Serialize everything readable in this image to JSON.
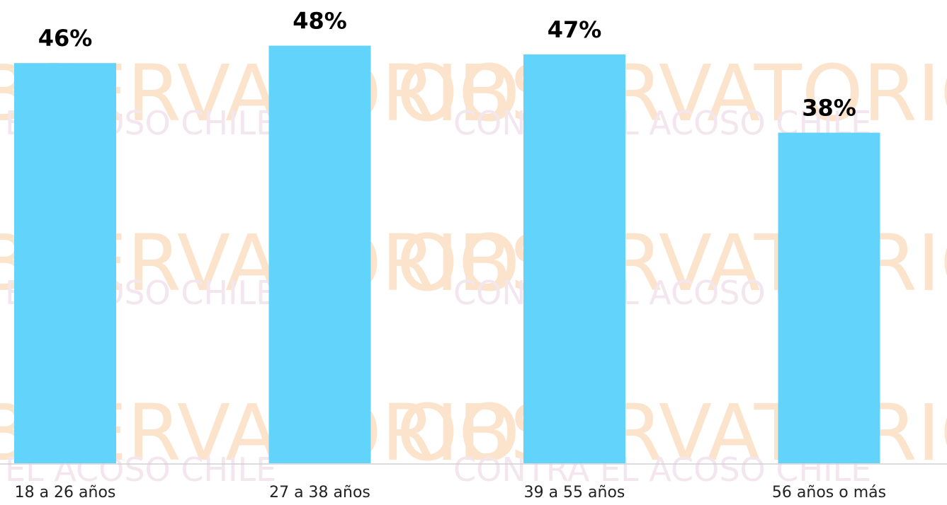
{
  "chart_data": {
    "type": "bar",
    "categories": [
      "18 a 26 años",
      "27 a 38 años",
      "39 a 55 años",
      "56 años o más"
    ],
    "values": [
      46,
      48,
      47,
      38
    ],
    "value_labels": [
      "46%",
      "48%",
      "47%",
      "38%"
    ],
    "color": "#62d4fc",
    "ylim": [
      0,
      53.25
    ]
  },
  "watermark": {
    "title": "OBSERVATORIO",
    "subtitle": "CONTRA EL ACOSO CHILE"
  }
}
